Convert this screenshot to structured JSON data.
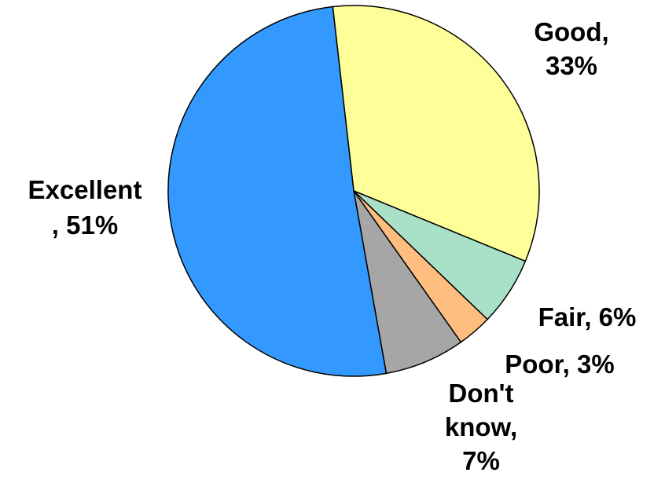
{
  "chart_data": {
    "type": "pie",
    "slices": [
      {
        "label": "Good",
        "value": 33,
        "color": "#FFFF99",
        "text": [
          "Good,",
          "33%"
        ]
      },
      {
        "label": "Fair",
        "value": 6,
        "color": "#A8E0C8",
        "text": [
          "Fair, 6%"
        ]
      },
      {
        "label": "Poor",
        "value": 3,
        "color": "#FFBE80",
        "text": [
          "Poor, 3%"
        ]
      },
      {
        "label": "Don't know",
        "value": 7,
        "color": "#A6A6A6",
        "text": [
          "Don't",
          "know,",
          "7%"
        ]
      },
      {
        "label": "Excellent",
        "value": 51,
        "color": "#3399FF",
        "text": [
          "Excellent",
          ", 51%"
        ]
      }
    ],
    "title": "",
    "legend": "none",
    "labels": "outside, category name and percent"
  }
}
